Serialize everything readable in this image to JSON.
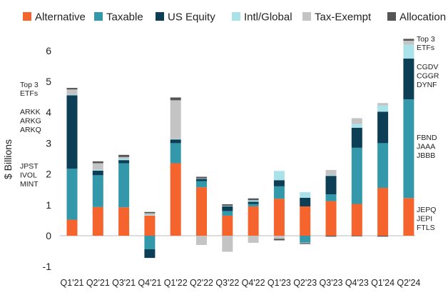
{
  "chart_data": {
    "type": "bar",
    "stacked": true,
    "ylabel": "$ Billions",
    "ylim": [
      -1,
      6.5
    ],
    "yticks": [
      -1,
      0,
      1,
      2,
      3,
      4,
      5,
      6
    ],
    "grid": false,
    "legend_position": "top",
    "categories": [
      "Q1'21",
      "Q2'21",
      "Q3'21",
      "Q4'21",
      "Q1'22",
      "Q2'22",
      "Q3'22",
      "Q4'22",
      "Q1'23",
      "Q2'23",
      "Q3'23",
      "Q4'23",
      "Q1'24",
      "Q2'24"
    ],
    "series": [
      {
        "name": "Alternative",
        "color": "#f4642c",
        "values": [
          0.52,
          0.93,
          0.92,
          0.65,
          2.35,
          1.57,
          0.65,
          0.95,
          1.2,
          0.95,
          1.12,
          1.03,
          1.55,
          1.22
        ]
      },
      {
        "name": "Taxable",
        "color": "#3399aa",
        "values": [
          1.65,
          1.03,
          1.43,
          -0.44,
          0.65,
          0.2,
          0.15,
          0.08,
          0.4,
          -0.22,
          0.22,
          1.82,
          1.45,
          3.2
        ]
      },
      {
        "name": "US Equity",
        "color": "#0c3e55",
        "values": [
          2.38,
          0.15,
          0.1,
          -0.28,
          0.12,
          0.07,
          0.15,
          0.07,
          0.2,
          0.28,
          0.6,
          0.65,
          1.02,
          1.32
        ]
      },
      {
        "name": "Intl/Global",
        "color": "#a9e2e8",
        "values": [
          0.02,
          0.03,
          0.05,
          0.02,
          0.02,
          0.02,
          0.02,
          0.05,
          0.3,
          0.18,
          0.02,
          0.12,
          0.2,
          0.45
        ]
      },
      {
        "name": "Tax-Exempt",
        "color": "#c4c4c4",
        "values": [
          0.17,
          0.21,
          0.05,
          0.06,
          1.25,
          -0.3,
          -0.52,
          -0.23,
          -0.1,
          -0.02,
          0.17,
          0.19,
          0.08,
          0.13
        ]
      },
      {
        "name": "Allocation",
        "color": "#555555",
        "values": [
          0.05,
          0.06,
          0.07,
          0.04,
          0.09,
          0.05,
          0.05,
          0.06,
          -0.05,
          -0.03,
          -0.03,
          -0.02,
          -0.03,
          0.06
        ]
      }
    ],
    "annotations": {
      "left": {
        "header": [
          "Top 3",
          "ETFs"
        ],
        "groups": [
          [
            "ARKK",
            "ARKG",
            "ARKQ"
          ],
          [
            "JPST",
            "IVOL",
            "MINT"
          ]
        ]
      },
      "right": {
        "header": [
          "Top 3",
          "ETFs"
        ],
        "groups": [
          [
            "CGDV",
            "CGGR",
            "DYNF"
          ],
          [
            "FBND",
            "JAAA",
            "JBBB"
          ],
          [
            "JEPQ",
            "JEPI",
            "FTLS"
          ]
        ]
      }
    }
  }
}
